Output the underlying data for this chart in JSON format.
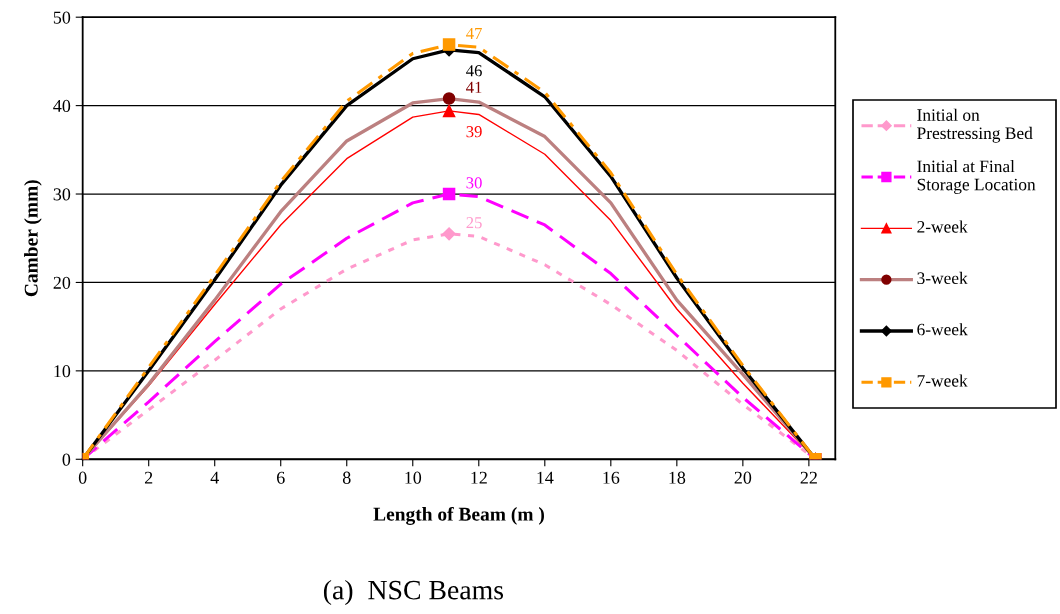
{
  "chart_data": {
    "type": "line",
    "xlabel": "Length of Beam (m )",
    "ylabel": "Camber (mm)",
    "annotations": [
      "(a)  NSC Beams"
    ],
    "xlim": [
      0,
      22.8
    ],
    "xticks": [
      0,
      2,
      4,
      6,
      8,
      10,
      12,
      14,
      16,
      18,
      20,
      22
    ],
    "ylim": [
      0,
      50
    ],
    "yticks": [
      0,
      10,
      20,
      30,
      40,
      50
    ],
    "grid": "y",
    "legend": "right",
    "series": [
      {
        "name": "Initial on Prestressing Bed",
        "color": "#ff99cc",
        "line_style": "dotted",
        "x": [
          0,
          2,
          4,
          6,
          8,
          10,
          11.1,
          12,
          14,
          16,
          18,
          20,
          22.2
        ],
        "values": [
          0,
          5.6,
          11.2,
          17,
          21.5,
          24.8,
          25.5,
          25.2,
          22,
          17.5,
          12.3,
          6.2,
          0
        ]
      },
      {
        "type": "scatter",
        "color": "#ff99cc",
        "marker": "diamond",
        "x": [
          0,
          11.1,
          22.2
        ],
        "values": [
          0,
          25.5,
          0
        ],
        "value_labels": [
          null,
          "25",
          null
        ]
      },
      {
        "name": "Initial at Final Storage Location",
        "color": "#ff00ff",
        "line_style": "dashed",
        "x": [
          0,
          2,
          4,
          6,
          8,
          10,
          11.1,
          12,
          14,
          16,
          18,
          20,
          22.2
        ],
        "values": [
          0,
          6.5,
          13.3,
          19.8,
          25,
          29,
          30,
          29.7,
          26.5,
          21,
          14,
          7,
          0
        ]
      },
      {
        "type": "scatter",
        "color": "#ff00ff",
        "marker": "square",
        "x": [
          0,
          11.1,
          22.2
        ],
        "values": [
          0,
          30,
          0
        ],
        "value_labels": [
          null,
          "30",
          null
        ]
      },
      {
        "name": "2-week",
        "color": "#ff0000",
        "line_style": "solid",
        "x": [
          0,
          2,
          4,
          6,
          8,
          10,
          11.1,
          12,
          14,
          16,
          18,
          20,
          22.2
        ],
        "values": [
          0,
          8.3,
          17.5,
          26.5,
          34,
          38.7,
          39.4,
          39,
          34.5,
          27,
          17,
          8.6,
          0
        ]
      },
      {
        "type": "scatter",
        "color": "#ff0000",
        "marker": "triangle",
        "x": [
          0,
          11.1,
          22.2
        ],
        "values": [
          0,
          39.4,
          0
        ],
        "value_labels": [
          null,
          "39",
          null
        ]
      },
      {
        "name": "3-week",
        "color": "#bc8080",
        "line_style": "solid",
        "x": [
          0,
          2,
          4,
          6,
          8,
          10,
          11.1,
          12,
          14,
          16,
          18,
          20,
          22.2
        ],
        "values": [
          0,
          8.5,
          18,
          28,
          36,
          40.3,
          40.8,
          40.4,
          36.5,
          29,
          18,
          9.6,
          0
        ]
      },
      {
        "type": "scatter",
        "color": "#800000",
        "marker": "circle",
        "x": [
          0,
          11.1,
          22.2
        ],
        "values": [
          0,
          40.8,
          0
        ],
        "value_labels": [
          null,
          "41",
          null
        ]
      },
      {
        "name": "6-week",
        "color": "#000000",
        "line_style": "solid",
        "x": [
          0,
          2,
          4,
          6,
          8,
          10,
          11.1,
          12,
          14,
          16,
          18,
          20,
          22.2
        ],
        "values": [
          0,
          10,
          20.3,
          31,
          40,
          45.3,
          46.3,
          46,
          41,
          32,
          20.5,
          10.3,
          0
        ]
      },
      {
        "type": "scatter",
        "color": "#000000",
        "marker": "diamond",
        "x": [
          0,
          11.1,
          22.2
        ],
        "values": [
          0,
          46.3,
          0
        ],
        "value_labels": [
          null,
          "46",
          null
        ]
      },
      {
        "name": "7-week",
        "color": "#ff9900",
        "line_style": "dashdot",
        "x": [
          0,
          2,
          4,
          6,
          8,
          10,
          11.1,
          12,
          14,
          16,
          18,
          20,
          22.2
        ],
        "values": [
          0,
          10.4,
          20.8,
          31.4,
          40.5,
          45.9,
          46.9,
          46.6,
          41.5,
          32.4,
          20.9,
          10.6,
          0
        ]
      },
      {
        "type": "scatter",
        "color": "#ff9900",
        "marker": "square",
        "x": [
          0,
          11.1,
          22.2
        ],
        "values": [
          0,
          46.9,
          0
        ],
        "value_labels": [
          null,
          "47",
          null
        ]
      }
    ]
  }
}
